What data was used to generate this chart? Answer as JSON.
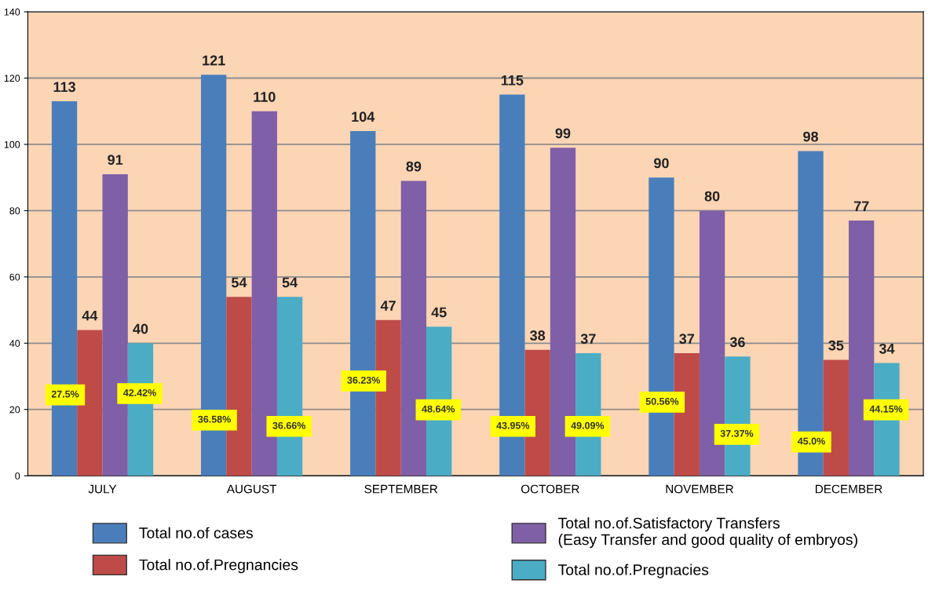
{
  "chart_data": {
    "type": "bar",
    "categories": [
      "JULY",
      "AUGUST",
      "SEPTEMBER",
      "OCTOBER",
      "NOVEMBER",
      "DECEMBER"
    ],
    "series": [
      {
        "name": "Total no.of cases",
        "color": "#4a7ebb",
        "values": [
          113,
          121,
          104,
          115,
          90,
          98
        ]
      },
      {
        "name": "Total no.of.Pregnancies",
        "color": "#be4b48",
        "values": [
          44,
          54,
          47,
          38,
          37,
          35
        ]
      },
      {
        "name": "Total no.of.Satisfactory Transfers\n(Easy Transfer and good quality of embryos)",
        "color": "#7f5fa8",
        "values": [
          91,
          110,
          89,
          99,
          80,
          77
        ]
      },
      {
        "name": "Total no.of.Pregnacies",
        "color": "#4bacc6",
        "values": [
          40,
          54,
          45,
          37,
          36,
          34
        ]
      }
    ],
    "ylim": [
      0,
      140
    ],
    "yticks": [
      0,
      20,
      40,
      60,
      80,
      100,
      120,
      140
    ],
    "grid": "y",
    "legend": "bottom",
    "data_labels": true,
    "annotations": [
      {
        "text": "27.5%",
        "x": "JULY",
        "y": 24.4
      },
      {
        "text": "42.42%",
        "x": "JULY",
        "y": 24.8
      },
      {
        "text": "36.58%",
        "x": "AUGUST",
        "y": 16.8
      },
      {
        "text": "36.66%",
        "x": "AUGUST",
        "y": 14.9
      },
      {
        "text": "36.23%",
        "x": "SEPTEMBER",
        "y": 28.6
      },
      {
        "text": "48.64%",
        "x": "SEPTEMBER",
        "y": 19.9
      },
      {
        "text": "43.95%",
        "x": "OCTOBER",
        "y": 14.9
      },
      {
        "text": "49.09%",
        "x": "OCTOBER",
        "y": 14.9
      },
      {
        "text": "50.56%",
        "x": "NOVEMBER",
        "y": 22.2
      },
      {
        "text": "37.37%",
        "x": "NOVEMBER",
        "y": 12.5
      },
      {
        "text": "45.0%",
        "x": "DECEMBER",
        "y": 10.2
      },
      {
        "text": "44.15%",
        "x": "DECEMBER",
        "y": 19.9
      }
    ]
  }
}
